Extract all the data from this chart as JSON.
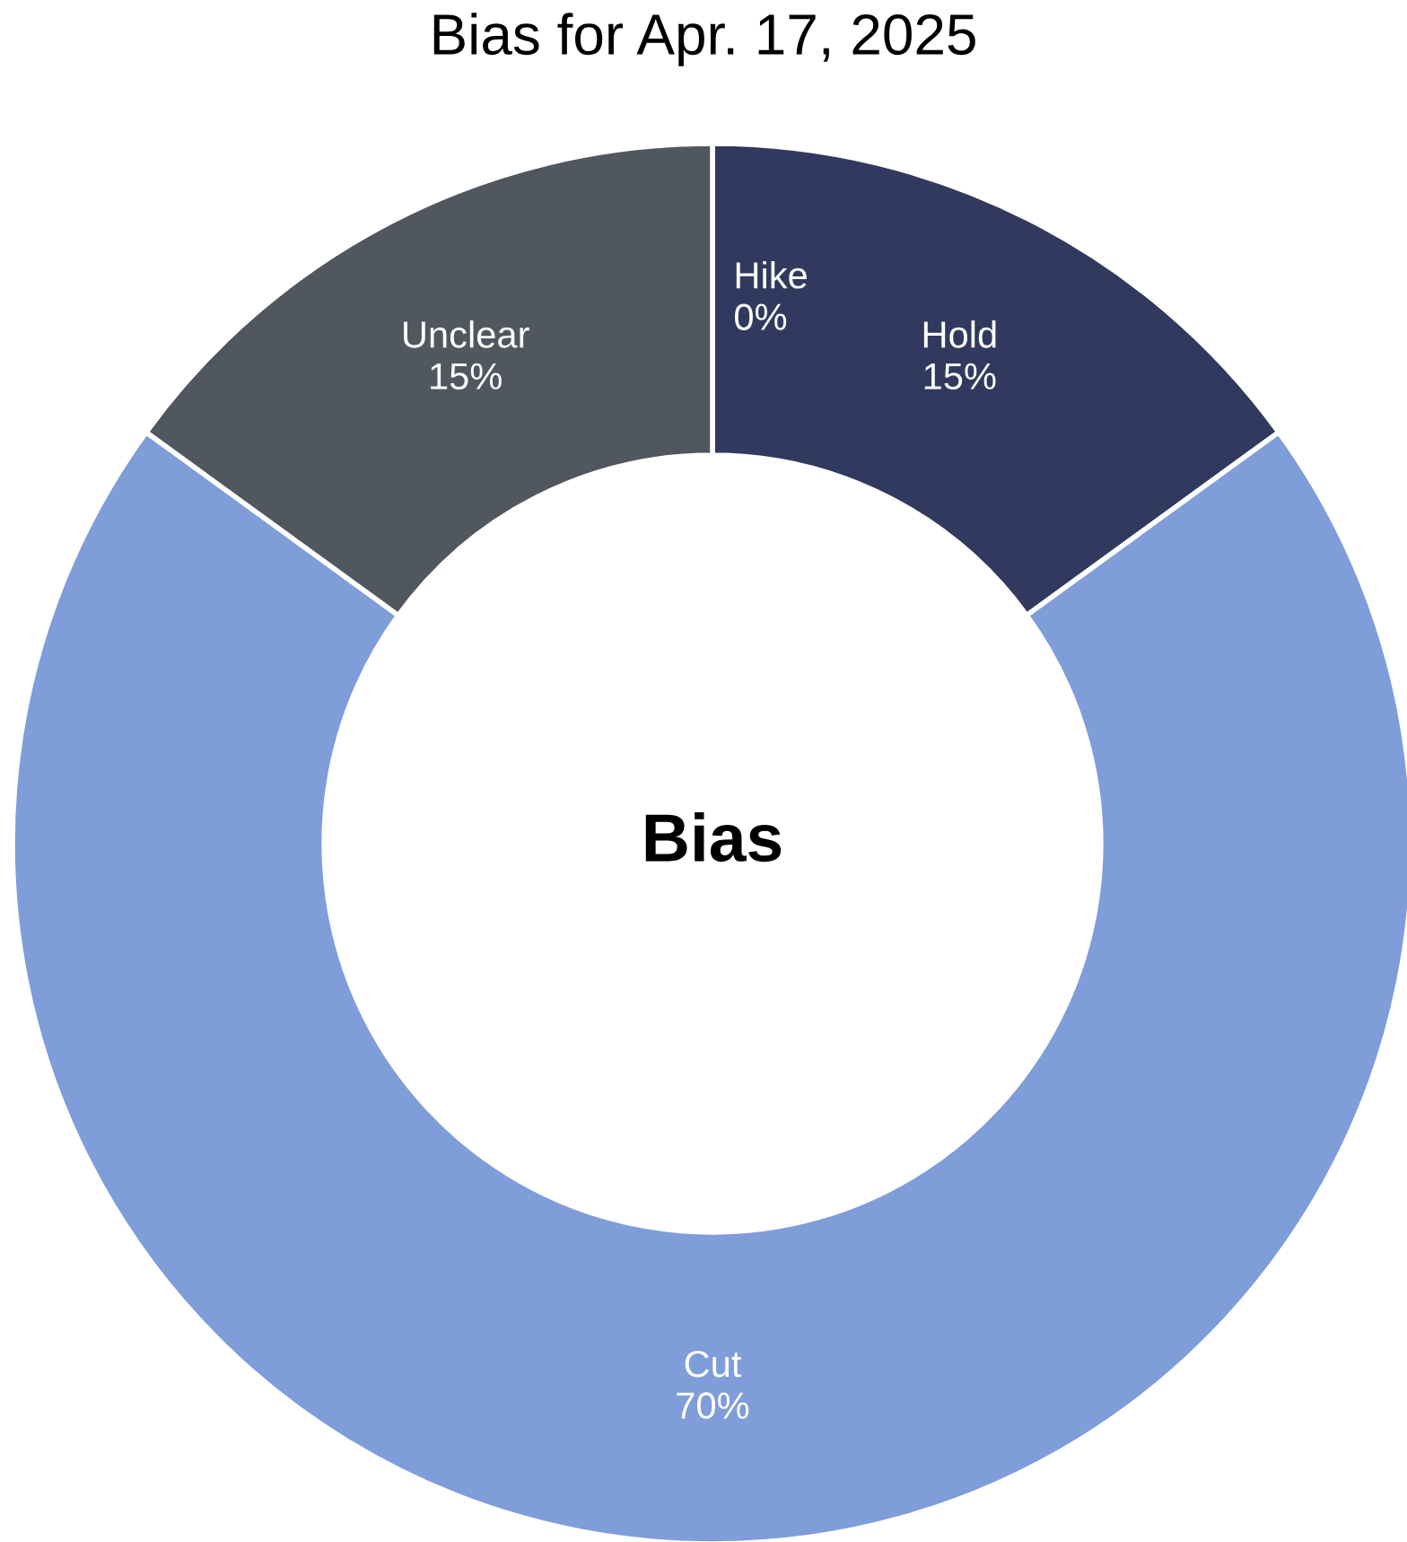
{
  "chart_data": {
    "type": "donut",
    "title": "Bias for Apr. 17, 2025",
    "categories": [
      "Hike",
      "Hold",
      "Cut",
      "Unclear"
    ],
    "values": [
      0,
      15,
      70,
      15
    ],
    "value_labels": [
      "0%",
      "15%",
      "70%",
      "15%"
    ],
    "colors": [
      "#2f3a63",
      "#313a5e",
      "#7f9dd9",
      "#50575e"
    ],
    "annotations": [
      "Bias"
    ],
    "legend": false
  }
}
